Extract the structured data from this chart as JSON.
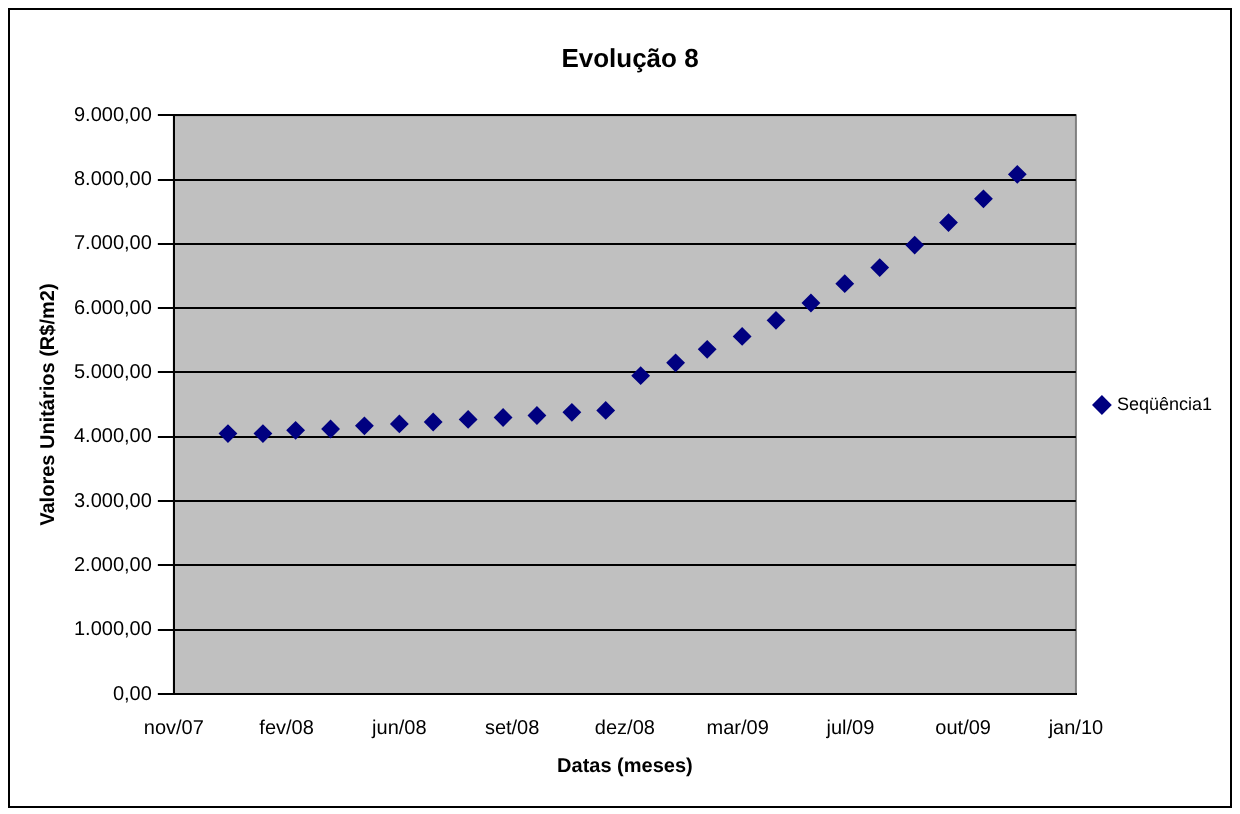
{
  "chart_data": {
    "type": "scatter",
    "title": "Evolução 8",
    "xlabel": "Datas (meses)",
    "ylabel": "Valores Unitários (R$/m2)",
    "x": [
      "2008-01-01",
      "2008-02-01",
      "2008-03-01",
      "2008-04-01",
      "2008-05-01",
      "2008-06-01",
      "2008-07-01",
      "2008-08-01",
      "2008-09-01",
      "2008-10-01",
      "2008-11-01",
      "2008-12-01",
      "2009-01-01",
      "2009-02-01",
      "2009-03-01",
      "2009-04-01",
      "2009-05-01",
      "2009-06-01",
      "2009-07-01",
      "2009-08-01",
      "2009-09-01",
      "2009-10-01",
      "2009-11-01",
      "2009-12-01"
    ],
    "series": [
      {
        "name": "Seqüência1",
        "color": "#000080",
        "values": [
          4050,
          4050,
          4100,
          4120,
          4170,
          4200,
          4230,
          4270,
          4300,
          4330,
          4380,
          4410,
          4950,
          5150,
          5360,
          5560,
          5810,
          6080,
          6380,
          6630,
          6980,
          7330,
          7700,
          8080
        ]
      }
    ],
    "xlim": [
      "2007-11-14",
      "2010-01-22"
    ],
    "xticks": [
      {
        "value": "2007-11-14",
        "label": "nov/07"
      },
      {
        "value": "2008-02-22",
        "label": "fev/08"
      },
      {
        "value": "2008-06-01",
        "label": "jun/08"
      },
      {
        "value": "2008-09-09",
        "label": "set/08"
      },
      {
        "value": "2008-12-18",
        "label": "dez/08"
      },
      {
        "value": "2009-03-28",
        "label": "mar/09"
      },
      {
        "value": "2009-07-06",
        "label": "jul/09"
      },
      {
        "value": "2009-10-14",
        "label": "out/09"
      },
      {
        "value": "2010-01-22",
        "label": "jan/10"
      }
    ],
    "ylim": [
      0,
      9000
    ],
    "yticks": [
      {
        "value": 0,
        "label": "0,00"
      },
      {
        "value": 1000,
        "label": "1.000,00"
      },
      {
        "value": 2000,
        "label": "2.000,00"
      },
      {
        "value": 3000,
        "label": "3.000,00"
      },
      {
        "value": 4000,
        "label": "4.000,00"
      },
      {
        "value": 5000,
        "label": "5.000,00"
      },
      {
        "value": 6000,
        "label": "6.000,00"
      },
      {
        "value": 7000,
        "label": "7.000,00"
      },
      {
        "value": 8000,
        "label": "8.000,00"
      },
      {
        "value": 9000,
        "label": "9.000,00"
      }
    ],
    "grid": "y",
    "legend": "right",
    "marker": "diamond"
  }
}
